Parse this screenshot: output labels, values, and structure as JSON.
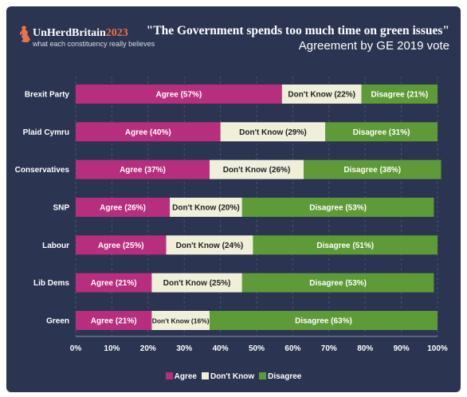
{
  "header": {
    "brand_main": "UnHerdBritain",
    "brand_year": "2023",
    "brand_tagline": "what each constituency really believes",
    "title": "\"The Government spends too much time on green issues\"",
    "subtitle": "Agreement by GE 2019 vote"
  },
  "colors": {
    "background": "#2b3450",
    "agree": "#b82e7e",
    "dont_know": "#efefda",
    "disagree": "#5e9a38",
    "brand_accent": "#e8734a"
  },
  "chart_data": {
    "type": "bar",
    "orientation": "horizontal",
    "stacked": "percent",
    "title": "\"The Government spends too much time on green issues\"",
    "subtitle": "Agreement by GE 2019 vote",
    "categories": [
      "Brexit Party",
      "Plaid Cymru",
      "Conservatives",
      "SNP",
      "Labour",
      "Lib Dems",
      "Green"
    ],
    "series": [
      {
        "name": "Agree",
        "values": [
          57,
          40,
          37,
          26,
          25,
          21,
          21
        ]
      },
      {
        "name": "Don't Know",
        "values": [
          22,
          29,
          26,
          20,
          24,
          25,
          16
        ]
      },
      {
        "name": "Disagree",
        "values": [
          21,
          31,
          38,
          53,
          51,
          53,
          63
        ]
      }
    ],
    "xlim": [
      0,
      100
    ],
    "xticks": [
      "0%",
      "10%",
      "20%",
      "30%",
      "40%",
      "50%",
      "60%",
      "70%",
      "80%",
      "90%",
      "100%"
    ],
    "grid": true,
    "legend": "bottom"
  }
}
